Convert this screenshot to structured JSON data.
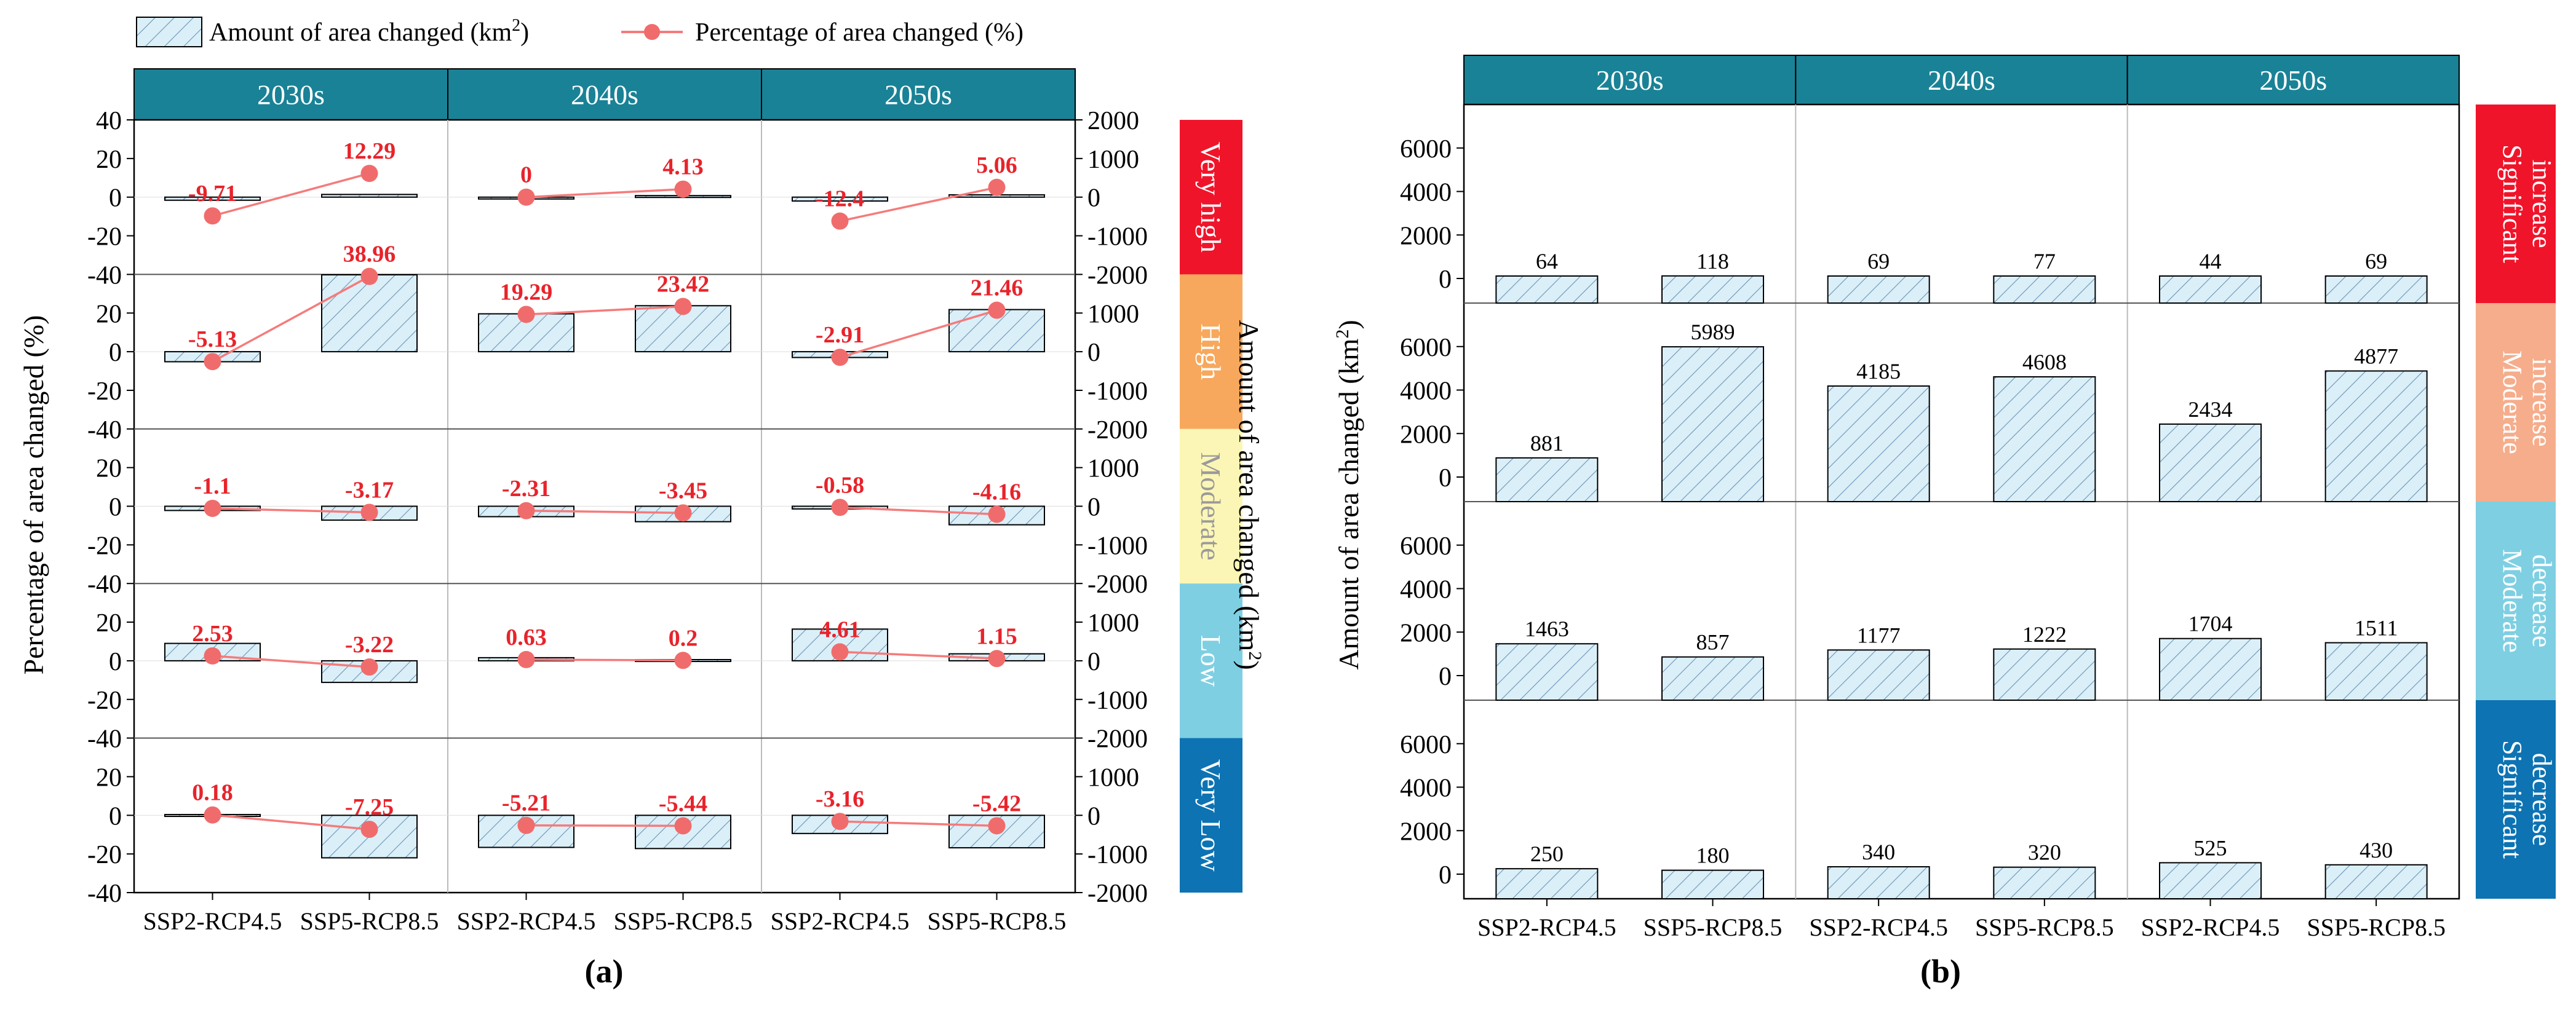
{
  "legend": {
    "bar_label": "Amount of area changed (km",
    "bar_label_sup": "2",
    "bar_label_end": ")",
    "line_label": "Percentage of area changed (%)"
  },
  "colors": {
    "header_bg": "#1a8296",
    "header_text": "#ffffff",
    "bar_fill": "#dbeff8",
    "bar_hatch": "#6b93b3",
    "line": "#f57b7b",
    "marker": "#f06c6c",
    "value_red": "#e8232b"
  },
  "chart_data": [
    {
      "panel": "a",
      "type": "bar+line",
      "caption": "(a)",
      "periods": [
        "2030s",
        "2040s",
        "2050s"
      ],
      "scenarios": [
        "SSP2-RCP4.5",
        "SSP5-RCP8.5"
      ],
      "ylabel_left": "Percentage of area changed (%)",
      "ylabel_right": "Amount of area changed (km",
      "ylabel_right_sup": "2",
      "ylabel_right_end": ")",
      "left_ticks": [
        "40",
        "20",
        "0",
        "-20",
        "-40"
      ],
      "right_ticks": [
        "2000",
        "1000",
        "0",
        "-1000",
        "-2000"
      ],
      "ylim_left": [
        -40,
        40
      ],
      "ylim_right": [
        -2000,
        2000
      ],
      "rows": [
        {
          "label": "Very high",
          "color": "#f0142a",
          "text_color": "#ffffff",
          "percent": [
            -9.71,
            12.29,
            0,
            4.13,
            -12.4,
            5.06
          ],
          "percent_labels": [
            "-9.71",
            "12.29",
            "0",
            "4.13",
            "-12.4",
            "5.06"
          ],
          "area": [
            -80,
            70,
            0,
            40,
            -100,
            60
          ]
        },
        {
          "label": "High",
          "color": "#f7a85c",
          "text_color": "#ffffff",
          "percent": [
            -5.13,
            38.96,
            19.29,
            23.42,
            -2.91,
            21.46
          ],
          "percent_labels": [
            "-5.13",
            "38.96",
            "19.29",
            "23.42",
            "-2.91",
            "21.46"
          ],
          "area": [
            -260,
            1990,
            980,
            1190,
            -150,
            1090
          ]
        },
        {
          "label": "Moderate",
          "color": "#fbf6b5",
          "text_color": "#9a9a9a",
          "percent": [
            -1.1,
            -3.17,
            -2.31,
            -3.45,
            -0.58,
            -4.16
          ],
          "percent_labels": [
            "-1.1",
            "-3.17",
            "-2.31",
            "-3.45",
            "-0.58",
            "-4.16"
          ],
          "area": [
            -110,
            -360,
            -270,
            -400,
            -70,
            -480
          ]
        },
        {
          "label": "Low",
          "color": "#7fcfe2",
          "text_color": "#ffffff",
          "percent": [
            2.53,
            -3.22,
            0.63,
            0.2,
            4.61,
            1.15
          ],
          "percent_labels": [
            "2.53",
            "-3.22",
            "0.63",
            "0.2",
            "4.61",
            "1.15"
          ],
          "area": [
            450,
            -560,
            80,
            30,
            820,
            180
          ]
        },
        {
          "label": "Very Low",
          "color": "#0d73b3",
          "text_color": "#ffffff",
          "percent": [
            0.18,
            -7.25,
            -5.21,
            -5.44,
            -3.16,
            -5.42
          ],
          "percent_labels": [
            "0.18",
            "-7.25",
            "-5.21",
            "-5.44",
            "-3.16",
            "-5.42"
          ],
          "area": [
            20,
            -1100,
            -830,
            -860,
            -470,
            -840
          ]
        }
      ]
    },
    {
      "panel": "b",
      "type": "bar",
      "caption": "(b)",
      "periods": [
        "2030s",
        "2040s",
        "2050s"
      ],
      "scenarios": [
        "SSP2-RCP4.5",
        "SSP5-RCP8.5"
      ],
      "ylabel": "Amount of area changed (km",
      "ylabel_sup": "2",
      "ylabel_end": ")",
      "y_ticks": [
        "6000",
        "4000",
        "2000",
        "0"
      ],
      "ylim": [
        0,
        8000
      ],
      "rows": [
        {
          "label_lines": [
            "Significant",
            "increase"
          ],
          "color": "#f0142a",
          "text_color": "#ffffff",
          "values": [
            64,
            118,
            69,
            77,
            44,
            69
          ],
          "value_labels": [
            "64",
            "118",
            "69",
            "77",
            "44",
            "69"
          ]
        },
        {
          "label_lines": [
            "Moderate",
            "increase"
          ],
          "color": "#f5ad8c",
          "text_color": "#ffffff",
          "values": [
            881,
            5989,
            4185,
            4608,
            2434,
            4877
          ],
          "value_labels": [
            "881",
            "5989",
            "4185",
            "4608",
            "2434",
            "4877"
          ]
        },
        {
          "label_lines": [
            "Moderate",
            "decrease"
          ],
          "color": "#7fcfe2",
          "text_color": "#ffffff",
          "values": [
            1463,
            857,
            1177,
            1222,
            1704,
            1511
          ],
          "value_labels": [
            "1463",
            "857",
            "1177",
            "1222",
            "1704",
            "1511"
          ]
        },
        {
          "label_lines": [
            "Significant",
            "decrease"
          ],
          "color": "#0d73b3",
          "text_color": "#ffffff",
          "values": [
            250,
            180,
            340,
            320,
            525,
            430
          ],
          "value_labels": [
            "250",
            "180",
            "340",
            "320",
            "525",
            "430"
          ]
        }
      ]
    }
  ]
}
